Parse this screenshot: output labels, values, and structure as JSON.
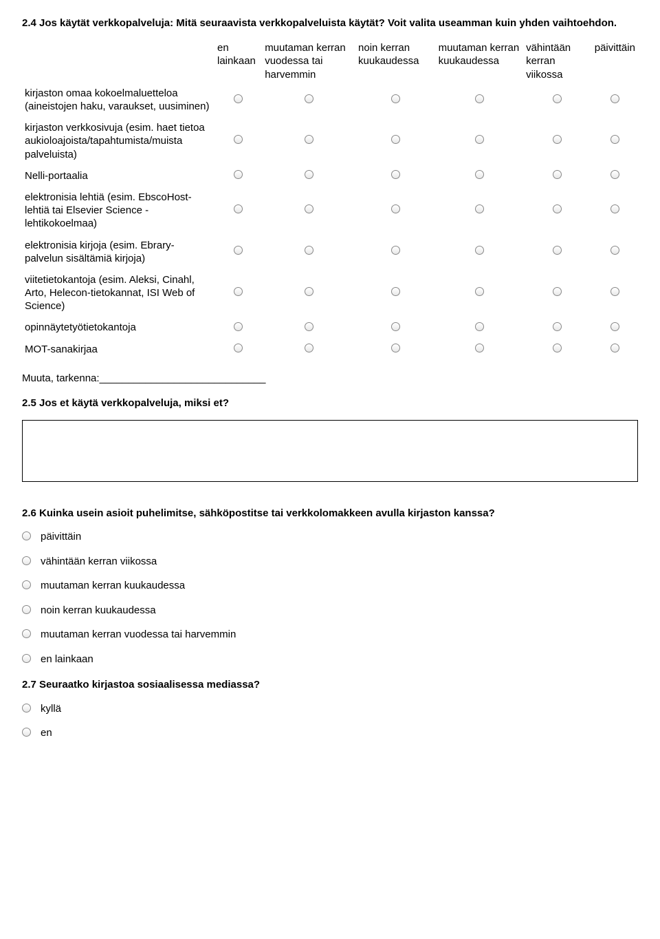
{
  "q24": {
    "title": "2.4 Jos käytät verkkopalveluja: Mitä seuraavista verkkopalveluista käytät? Voit valita useamman kuin yhden vaihtoehdon.",
    "columns": [
      "en lainkaan",
      "muutaman kerran vuodessa tai harvemmin",
      "noin kerran kuukaudessa",
      "muutaman kerran kuukaudessa",
      "vähintään kerran viikossa",
      "päivittäin"
    ],
    "rows": [
      "kirjaston omaa kokoelmaluetteloa (aineistojen haku, varaukset, uusiminen)",
      "kirjaston verkkosivuja (esim. haet tietoa aukioloajoista/tapahtumista/muista palveluista)",
      "Nelli-portaalia",
      "elektronisia lehtiä (esim. EbscoHost-lehtiä tai Elsevier Science -lehtikokoelmaa)",
      "elektronisia kirjoja (esim. Ebrary-palvelun sisältämiä kirjoja)",
      "viitetietokantoja (esim. Aleksi, Cinahl, Arto, Helecon-tietokannat, ISI Web of Science)",
      "opinnäytetyötietokantoja",
      "MOT-sanakirjaa"
    ]
  },
  "muuta_label": "Muuta, tarkenna:_____________________________",
  "q25": {
    "title": "2.5 Jos et käytä verkkopalveluja, miksi et?"
  },
  "q26": {
    "title": "2.6 Kuinka usein asioit puhelimitse, sähköpostitse tai verkkolomakkeen avulla kirjaston kanssa?",
    "options": [
      "päivittäin",
      "vähintään kerran viikossa",
      "muutaman kerran kuukaudessa",
      "noin kerran kuukaudessa",
      "muutaman kerran vuodessa tai harvemmin",
      "en lainkaan"
    ]
  },
  "q27": {
    "title": "2.7 Seuraatko kirjastoa sosiaalisessa mediassa?",
    "options": [
      "kyllä",
      "en"
    ]
  }
}
